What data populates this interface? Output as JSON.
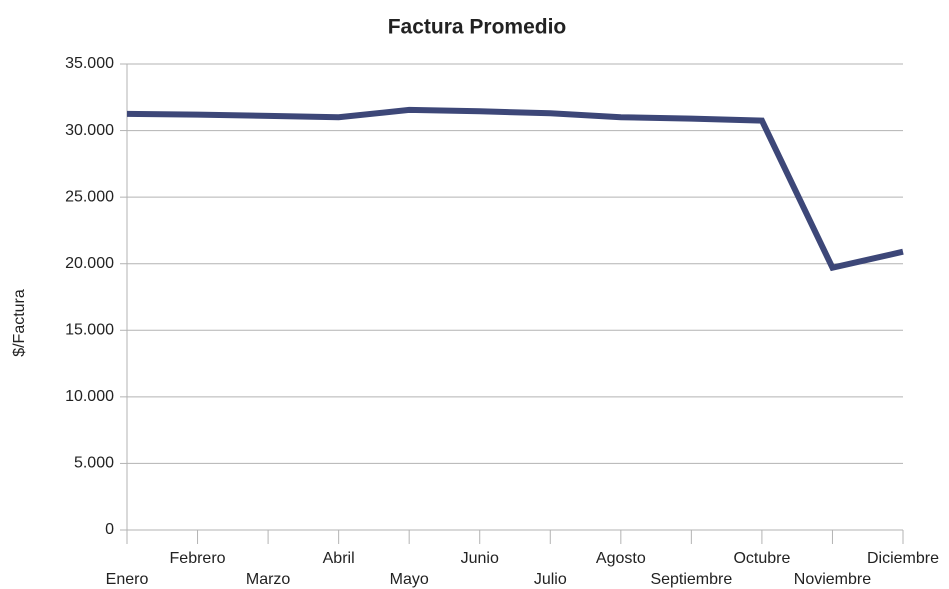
{
  "chart_data": {
    "type": "line",
    "title": "Factura Promedio",
    "y_label": "$/Factura",
    "categories": [
      "Enero",
      "Febrero",
      "Marzo",
      "Abril",
      "Mayo",
      "Junio",
      "Julio",
      "Agosto",
      "Septiembre",
      "Octubre",
      "Noviembre",
      "Diciembre"
    ],
    "series": [
      {
        "name": "Factura Promedio",
        "color": "#3d4778",
        "values": [
          31250,
          31200,
          31100,
          31000,
          31550,
          31450,
          31300,
          31000,
          30900,
          30750,
          19700,
          20900
        ]
      }
    ],
    "ylim": [
      0,
      35000
    ],
    "yticks": [
      0,
      {
        "value": 5000,
        "label": "5.000"
      },
      {
        "value": 10000,
        "label": "10.000"
      },
      {
        "value": 15000,
        "label": "15.000"
      },
      {
        "value": 20000,
        "label": "20.000"
      },
      {
        "value": 25000,
        "label": "25.000"
      },
      {
        "value": 30000,
        "label": "30.000"
      },
      {
        "value": 35000,
        "label": "35.000"
      }
    ],
    "grid": true,
    "legend": false
  }
}
